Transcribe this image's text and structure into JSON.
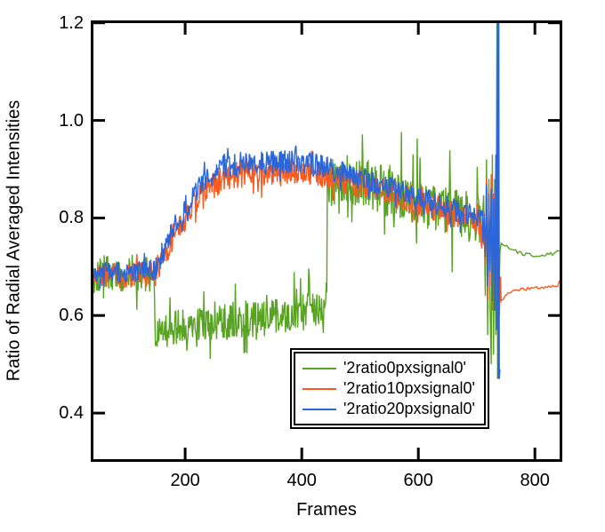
{
  "chart_data": {
    "type": "line",
    "title": "",
    "xlabel": "Frames",
    "ylabel": "Ratio of Radial Averaged Intensities",
    "xlim": [
      38,
      847
    ],
    "ylim": [
      0.3,
      1.205
    ],
    "x_ticks": [
      200,
      400,
      600,
      800
    ],
    "y_ticks": [
      0.4,
      0.6,
      0.8,
      1.0,
      1.2
    ],
    "y_tick_labels": [
      "0.4",
      "0.6",
      "0.8",
      "1.0",
      "1.2"
    ],
    "x_tick_labels": [
      "200",
      "400",
      "600",
      "800"
    ],
    "grid": false,
    "colors": {
      "background": "#ffffff",
      "axis": "#000000"
    },
    "frame": {
      "style": "closed-box",
      "tick_direction": "inward",
      "mirrored_ticks": true
    },
    "legend": {
      "position": "inside-lower-right",
      "double_border": true,
      "entries": [
        {
          "label": "'2ratio0pxsignal0'",
          "color": "#58a322"
        },
        {
          "label": "'2ratio10pxsignal0'",
          "color": "#fb5a1e"
        },
        {
          "label": "'2ratio20pxsignal0'",
          "color": "#2a65d9"
        }
      ]
    },
    "series": [
      {
        "name": "'2ratio0pxsignal0'",
        "color": "#58a322",
        "description": "noisy ~0.69 until frame 148, drops to noisy ~0.58 band until 443, jumps to ~0.87 declining to 0.79 with large noise, chaotic spike burst 713-742 (reaches 1.2 and 0.47), then smooth tail ~0.73",
        "segments": [
          {
            "type": "noisy",
            "x0": 40,
            "x1": 147,
            "amp": 0.04,
            "spike_prob": 0.1,
            "spike_mult": 2.0,
            "points": [
              [
                40,
                0.69
              ],
              [
                90,
                0.683
              ],
              [
                130,
                0.69
              ],
              [
                147,
                0.68
              ]
            ]
          },
          {
            "type": "noisy",
            "x0": 148,
            "x1": 443,
            "amp": 0.038,
            "spike_prob": 0.12,
            "spike_mult": 2.4,
            "points": [
              [
                148,
                0.56
              ],
              [
                170,
                0.57
              ],
              [
                220,
                0.585
              ],
              [
                280,
                0.59
              ],
              [
                340,
                0.595
              ],
              [
                400,
                0.605
              ],
              [
                443,
                0.615
              ]
            ]
          },
          {
            "type": "noisy",
            "x0": 444,
            "x1": 713,
            "amp": 0.052,
            "spike_prob": 0.09,
            "spike_mult": 2.6,
            "points": [
              [
                444,
                0.87
              ],
              [
                480,
                0.878
              ],
              [
                510,
                0.872
              ],
              [
                540,
                0.855
              ],
              [
                570,
                0.845
              ],
              [
                600,
                0.835
              ],
              [
                640,
                0.82
              ],
              [
                680,
                0.805
              ],
              [
                713,
                0.795
              ]
            ]
          },
          {
            "type": "path",
            "points": [
              [
                713,
                0.79
              ],
              [
                715,
                0.64
              ],
              [
                717,
                0.92
              ],
              [
                719,
                0.56
              ],
              [
                721,
                0.88
              ],
              [
                723,
                0.62
              ],
              [
                725,
                0.5
              ],
              [
                727,
                0.93
              ],
              [
                729,
                0.52
              ],
              [
                731,
                0.88
              ],
              [
                733,
                0.56
              ],
              [
                735,
                1.21
              ],
              [
                736,
                0.47
              ],
              [
                737,
                0.95
              ],
              [
                738,
                0.62
              ],
              [
                740,
                0.73
              ],
              [
                742,
                0.748
              ]
            ]
          },
          {
            "type": "smooth",
            "x0": 743,
            "x1": 843,
            "amp": 0.0045,
            "points": [
              [
                743,
                0.748
              ],
              [
                758,
                0.737
              ],
              [
                775,
                0.729
              ],
              [
                795,
                0.724
              ],
              [
                812,
                0.722
              ],
              [
                827,
                0.726
              ],
              [
                838,
                0.73
              ],
              [
                843,
                0.734
              ]
            ]
          }
        ]
      },
      {
        "name": "'2ratio10pxsignal0'",
        "color": "#fb5a1e",
        "description": "noisy ~0.685 until 150, rises to ~0.89 plateau by 265, plateau to 450, gradual decline to 0.79 by 713, chaotic burst 713-742 (0.55-0.95), smooth tail rising 0.63 to 0.67 with final uptick",
        "segments": [
          {
            "type": "noisy",
            "x0": 40,
            "x1": 149,
            "amp": 0.026,
            "spike_prob": 0.08,
            "spike_mult": 1.8,
            "points": [
              [
                40,
                0.685
              ],
              [
                95,
                0.68
              ],
              [
                149,
                0.686
              ]
            ]
          },
          {
            "type": "noisy",
            "x0": 150,
            "x1": 264,
            "amp": 0.028,
            "spike_prob": 0.08,
            "spike_mult": 1.8,
            "points": [
              [
                150,
                0.69
              ],
              [
                185,
                0.775
              ],
              [
                225,
                0.845
              ],
              [
                264,
                0.88
              ]
            ]
          },
          {
            "type": "noisy",
            "x0": 265,
            "x1": 449,
            "amp": 0.028,
            "spike_prob": 0.08,
            "spike_mult": 1.9,
            "points": [
              [
                265,
                0.885
              ],
              [
                320,
                0.893
              ],
              [
                370,
                0.897
              ],
              [
                420,
                0.89
              ],
              [
                449,
                0.885
              ]
            ]
          },
          {
            "type": "noisy",
            "x0": 450,
            "x1": 713,
            "amp": 0.028,
            "spike_prob": 0.08,
            "spike_mult": 1.9,
            "points": [
              [
                450,
                0.882
              ],
              [
                510,
                0.862
              ],
              [
                560,
                0.848
              ],
              [
                610,
                0.828
              ],
              [
                660,
                0.808
              ],
              [
                700,
                0.792
              ],
              [
                713,
                0.788
              ]
            ]
          },
          {
            "type": "path",
            "points": [
              [
                713,
                0.78
              ],
              [
                715,
                0.7
              ],
              [
                717,
                0.88
              ],
              [
                719,
                0.63
              ],
              [
                721,
                0.86
              ],
              [
                723,
                0.66
              ],
              [
                725,
                0.89
              ],
              [
                727,
                0.61
              ],
              [
                729,
                0.85
              ],
              [
                731,
                0.63
              ],
              [
                733,
                0.91
              ],
              [
                735,
                0.67
              ],
              [
                736,
                0.95
              ],
              [
                737,
                0.55
              ],
              [
                738,
                0.92
              ],
              [
                739,
                0.6
              ],
              [
                741,
                0.68
              ],
              [
                742,
                0.63
              ]
            ]
          },
          {
            "type": "smooth",
            "x0": 743,
            "x1": 843,
            "amp": 0.003,
            "points": [
              [
                743,
                0.63
              ],
              [
                750,
                0.643
              ],
              [
                760,
                0.649
              ],
              [
                775,
                0.653
              ],
              [
                795,
                0.656
              ],
              [
                815,
                0.658
              ],
              [
                832,
                0.66
              ],
              [
                839,
                0.661
              ],
              [
                841,
                0.668
              ],
              [
                843,
                0.67
              ]
            ]
          }
        ]
      },
      {
        "name": "'2ratio20pxsignal0'",
        "color": "#2a65d9",
        "description": "noisy ~0.69 until 150, rises to ~0.91 plateau by 265, plateau to 455, gradual decline to 0.79 by 713, then chaotic burst ending in full-height vertical spike (0.47 to >1.2) at frame ~738; series ends at 740",
        "segments": [
          {
            "type": "noisy",
            "x0": 40,
            "x1": 149,
            "amp": 0.021,
            "spike_prob": 0.08,
            "spike_mult": 1.8,
            "points": [
              [
                40,
                0.69
              ],
              [
                95,
                0.688
              ],
              [
                149,
                0.693
              ]
            ]
          },
          {
            "type": "noisy",
            "x0": 150,
            "x1": 264,
            "amp": 0.024,
            "spike_prob": 0.08,
            "spike_mult": 1.8,
            "points": [
              [
                150,
                0.7
              ],
              [
                185,
                0.79
              ],
              [
                225,
                0.865
              ],
              [
                264,
                0.9
              ]
            ]
          },
          {
            "type": "noisy",
            "x0": 265,
            "x1": 454,
            "amp": 0.024,
            "spike_prob": 0.08,
            "spike_mult": 1.9,
            "points": [
              [
                265,
                0.905
              ],
              [
                320,
                0.912
              ],
              [
                380,
                0.917
              ],
              [
                430,
                0.91
              ],
              [
                454,
                0.902
              ]
            ]
          },
          {
            "type": "noisy",
            "x0": 455,
            "x1": 713,
            "amp": 0.024,
            "spike_prob": 0.08,
            "spike_mult": 1.9,
            "points": [
              [
                455,
                0.898
              ],
              [
                510,
                0.878
              ],
              [
                560,
                0.858
              ],
              [
                610,
                0.838
              ],
              [
                660,
                0.818
              ],
              [
                700,
                0.8
              ],
              [
                713,
                0.795
              ]
            ]
          },
          {
            "type": "path",
            "points": [
              [
                713,
                0.8
              ],
              [
                715,
                0.72
              ],
              [
                717,
                0.87
              ],
              [
                719,
                0.66
              ],
              [
                721,
                0.85
              ],
              [
                723,
                0.69
              ],
              [
                725,
                0.86
              ],
              [
                727,
                0.63
              ],
              [
                729,
                0.84
              ],
              [
                731,
                0.61
              ],
              [
                733,
                0.93
              ],
              [
                734,
                0.57
              ],
              [
                735,
                0.9
              ],
              [
                736,
                1.25
              ],
              [
                737,
                0.47
              ],
              [
                738,
                1.25
              ],
              [
                739,
                0.47
              ],
              [
                740,
                0.49
              ]
            ]
          }
        ]
      }
    ]
  }
}
